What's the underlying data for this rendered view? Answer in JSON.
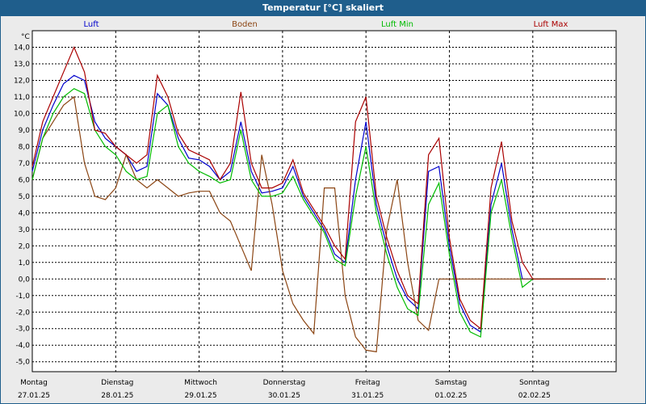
{
  "chart_data": {
    "type": "line",
    "title": "Temperatur [°C] skaliert",
    "ylabel": "°C",
    "ylim": [
      -5.6,
      15.0
    ],
    "yticks": [
      14.0,
      13.0,
      12.0,
      11.0,
      10.0,
      9.0,
      8.0,
      7.0,
      6.0,
      5.0,
      4.0,
      3.0,
      2.0,
      1.0,
      0.0,
      -1.0,
      -2.0,
      -3.0,
      -4.0,
      -5.0
    ],
    "ytick_labels": [
      "14,0",
      "13,0",
      "12,0",
      "11,0",
      "10,0",
      "9,0",
      "8,0",
      "7,0",
      "6,0",
      "5,0",
      "4,0",
      "3,0",
      "2,0",
      "1,0",
      "0,0",
      "-1,0",
      "-2,0",
      "-3,0",
      "-4,0",
      "-5,0"
    ],
    "days": [
      {
        "name": "Montag",
        "date": "27.01.25"
      },
      {
        "name": "Dienstag",
        "date": "28.01.25"
      },
      {
        "name": "Mittwoch",
        "date": "29.01.25"
      },
      {
        "name": "Donnerstag",
        "date": "30.01.25"
      },
      {
        "name": "Freitag",
        "date": "31.01.25"
      },
      {
        "name": "Samstag",
        "date": "01.02.25"
      },
      {
        "name": "Sonntag",
        "date": "02.02.25"
      }
    ],
    "x_unit": "hours since Montag 27.01.25 00:00",
    "grid": true,
    "legend_position": "top",
    "series": [
      {
        "name": "Luft",
        "color": "#0000cc",
        "x": [
          0,
          3,
          6,
          9,
          12,
          15,
          18,
          21,
          24,
          27,
          30,
          33,
          36,
          39,
          42,
          45,
          48,
          51,
          54,
          57,
          60,
          63,
          66,
          69,
          72,
          75,
          78,
          81,
          84,
          87,
          90,
          93,
          96,
          99,
          102,
          105,
          108,
          111,
          114,
          117,
          120,
          123,
          126,
          129,
          132,
          135,
          138,
          141,
          144,
          147,
          150,
          153,
          156,
          159,
          162,
          165,
          168
        ],
        "y": [
          6.5,
          9.0,
          10.5,
          11.8,
          12.3,
          12.0,
          9.5,
          8.5,
          8.0,
          7.5,
          6.5,
          6.8,
          11.2,
          10.5,
          8.5,
          7.3,
          7.2,
          6.8,
          6.0,
          6.5,
          9.5,
          6.5,
          5.2,
          5.3,
          5.5,
          6.8,
          5.0,
          4.0,
          3.0,
          1.5,
          1.0,
          6.0,
          9.5,
          4.5,
          2.0,
          0.0,
          -1.2,
          -1.8,
          6.5,
          6.8,
          2.0,
          -1.5,
          -2.8,
          -3.2,
          4.5,
          7.0,
          3.0,
          0.0,
          0,
          0,
          0,
          0,
          0,
          0,
          0,
          0,
          0
        ]
      },
      {
        "name": "Boden",
        "color": "#8b4513",
        "x": [
          0,
          3,
          6,
          9,
          12,
          15,
          18,
          21,
          24,
          27,
          30,
          33,
          36,
          39,
          42,
          45,
          48,
          51,
          54,
          57,
          60,
          63,
          66,
          69,
          72,
          75,
          78,
          81,
          84,
          87,
          90,
          93,
          96,
          99,
          102,
          105,
          108,
          111,
          114,
          117,
          120,
          123,
          126,
          129,
          132,
          135,
          138,
          141,
          144,
          147,
          150,
          153,
          156,
          159,
          162,
          165,
          168
        ],
        "y": [
          6.0,
          8.5,
          9.5,
          10.5,
          11.0,
          7.0,
          5.0,
          4.8,
          5.5,
          7.5,
          6.0,
          5.5,
          6.0,
          5.5,
          5.0,
          5.2,
          5.3,
          5.3,
          4.0,
          3.5,
          2.0,
          0.5,
          7.5,
          4.5,
          0.5,
          -1.5,
          -2.5,
          -3.3,
          5.5,
          5.5,
          -1.0,
          -3.5,
          -4.3,
          -4.4,
          3.0,
          6.0,
          1.0,
          -2.5,
          -3.1,
          0,
          0,
          0,
          0,
          0,
          0,
          0,
          0,
          0,
          0,
          0,
          0,
          0,
          0,
          0,
          0,
          0,
          0
        ]
      },
      {
        "name": "Luft Min",
        "color": "#00bb00",
        "x": [
          0,
          3,
          6,
          9,
          12,
          15,
          18,
          21,
          24,
          27,
          30,
          33,
          36,
          39,
          42,
          45,
          48,
          51,
          54,
          57,
          60,
          63,
          66,
          69,
          72,
          75,
          78,
          81,
          84,
          87,
          90,
          93,
          96,
          99,
          102,
          105,
          108,
          111,
          114,
          117,
          120,
          123,
          126,
          129,
          132,
          135,
          138,
          141,
          144,
          147,
          150,
          153,
          156,
          159,
          162,
          165,
          168
        ],
        "y": [
          6.0,
          8.5,
          10.0,
          11.0,
          11.5,
          11.2,
          9.0,
          8.0,
          7.5,
          6.5,
          6.0,
          6.2,
          10.0,
          10.5,
          8.0,
          7.0,
          6.5,
          6.2,
          5.8,
          6.0,
          9.0,
          6.0,
          5.0,
          5.0,
          5.2,
          6.2,
          4.8,
          3.8,
          2.8,
          1.2,
          0.8,
          5.0,
          8.0,
          4.0,
          1.5,
          -0.5,
          -1.8,
          -2.2,
          4.5,
          5.8,
          1.5,
          -2.0,
          -3.2,
          -3.5,
          4.0,
          6.0,
          2.5,
          -0.5,
          0,
          0,
          0,
          0,
          0,
          0,
          0,
          0,
          0
        ]
      },
      {
        "name": "Luft Max",
        "color": "#aa0000",
        "x": [
          0,
          3,
          6,
          9,
          12,
          15,
          18,
          21,
          24,
          27,
          30,
          33,
          36,
          39,
          42,
          45,
          48,
          51,
          54,
          57,
          60,
          63,
          66,
          69,
          72,
          75,
          78,
          81,
          84,
          87,
          90,
          93,
          96,
          99,
          102,
          105,
          108,
          111,
          114,
          117,
          120,
          123,
          126,
          129,
          132,
          135,
          138,
          141,
          144,
          147,
          150,
          153,
          156,
          159,
          162,
          165,
          168
        ],
        "y": [
          6.8,
          9.5,
          11.0,
          12.5,
          14.0,
          12.5,
          9.0,
          8.8,
          8.0,
          7.5,
          7.0,
          7.5,
          12.3,
          11.0,
          8.8,
          7.8,
          7.5,
          7.2,
          6.0,
          7.0,
          11.3,
          7.0,
          5.5,
          5.5,
          5.8,
          7.2,
          5.2,
          4.2,
          3.2,
          2.0,
          1.2,
          9.5,
          11.0,
          5.0,
          2.5,
          0.5,
          -1.0,
          -1.5,
          7.5,
          8.5,
          2.5,
          -1.2,
          -2.5,
          -3.0,
          5.5,
          8.3,
          3.5,
          1.0,
          0,
          0,
          0,
          0,
          0,
          0,
          0,
          0,
          0
        ]
      }
    ]
  }
}
